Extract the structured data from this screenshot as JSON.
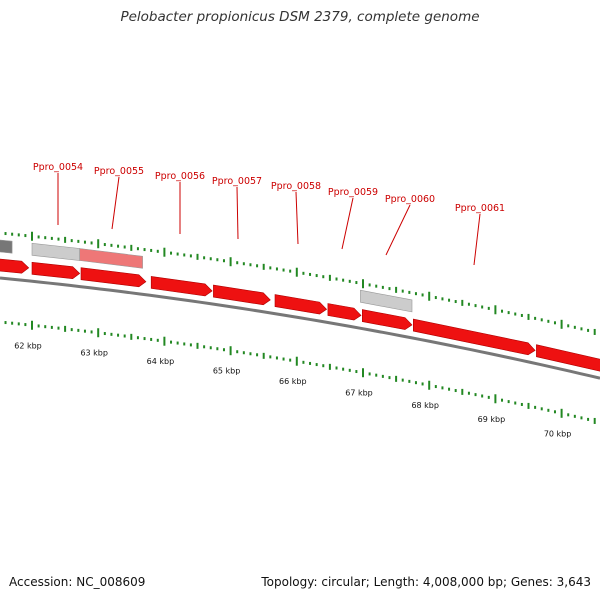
{
  "title": "Pelobacter propionicus DSM 2379, complete genome",
  "footer": {
    "accession": "Accession: NC_008609",
    "summary": "Topology: circular; Length: 4,008,000 bp; Genes: 3,643"
  },
  "colors": {
    "forward_gene": "#ee1111",
    "reverse_gene": "#cccccc",
    "highlight_gene": "#ee7777",
    "backbone": "#777777",
    "ticks": "#228822",
    "label": "#cc0000"
  },
  "scale_labels": [
    "62 kbp",
    "63 kbp",
    "64 kbp",
    "65 kbp",
    "66 kbp",
    "67 kbp",
    "68 kbp",
    "69 kbp",
    "70 kbp"
  ],
  "gene_labels": [
    "Ppro_0054",
    "Ppro_0055",
    "Ppro_0056",
    "Ppro_0057",
    "Ppro_0058",
    "Ppro_0059",
    "Ppro_0060",
    "Ppro_0061"
  ]
}
